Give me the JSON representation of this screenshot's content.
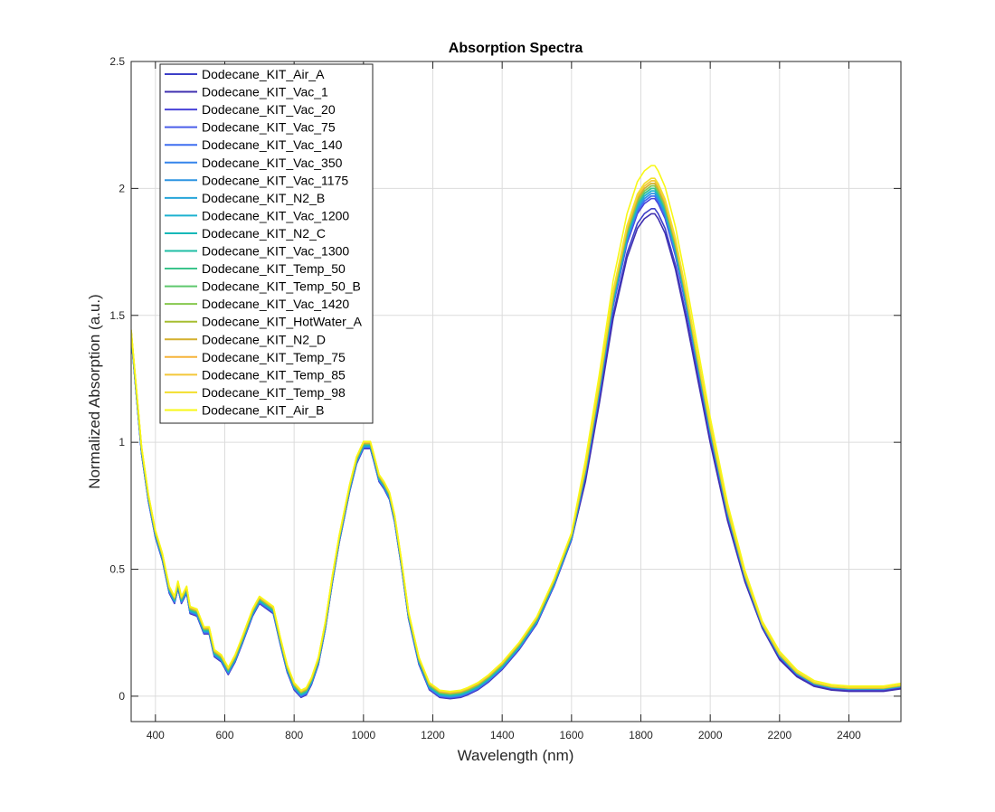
{
  "chart_data": {
    "type": "line",
    "title": "Absorption Spectra",
    "xlabel": "Wavelength (nm)",
    "ylabel": "Normalized Absorption (a.u.)",
    "xlim": [
      330,
      2550
    ],
    "ylim": [
      -0.1,
      2.5
    ],
    "xticks": [
      400,
      600,
      800,
      1000,
      1200,
      1400,
      1600,
      1800,
      2000,
      2200,
      2400
    ],
    "yticks": [
      0,
      0.5,
      1,
      1.5,
      2,
      2.5
    ],
    "xtick_labels": [
      "400",
      "600",
      "800",
      "1000",
      "1200",
      "1400",
      "1600",
      "1800",
      "2000",
      "2200",
      "2400"
    ],
    "ytick_labels": [
      "0",
      "0.5",
      "1",
      "1.5",
      "2",
      "2.5"
    ],
    "grid": true,
    "legend_position": "top-left",
    "base_curve": {
      "x": [
        330,
        345,
        360,
        380,
        400,
        420,
        440,
        455,
        465,
        475,
        490,
        500,
        520,
        540,
        555,
        570,
        590,
        610,
        630,
        650,
        680,
        700,
        720,
        740,
        760,
        780,
        800,
        820,
        835,
        850,
        870,
        890,
        910,
        930,
        960,
        980,
        1000,
        1020,
        1030,
        1045,
        1060,
        1075,
        1090,
        1110,
        1130,
        1160,
        1190,
        1220,
        1250,
        1280,
        1300,
        1330,
        1360,
        1400,
        1450,
        1500,
        1550,
        1600,
        1640,
        1680,
        1720,
        1760,
        1790,
        1810,
        1830,
        1840,
        1850,
        1870,
        1900,
        1930,
        1960,
        2000,
        2050,
        2100,
        2150,
        2200,
        2250,
        2300,
        2350,
        2400,
        2450,
        2500,
        2550
      ],
      "y": [
        1.43,
        1.2,
        0.97,
        0.78,
        0.64,
        0.55,
        0.42,
        0.38,
        0.44,
        0.38,
        0.42,
        0.34,
        0.33,
        0.26,
        0.26,
        0.17,
        0.15,
        0.1,
        0.15,
        0.22,
        0.33,
        0.38,
        0.36,
        0.34,
        0.22,
        0.11,
        0.04,
        0.01,
        0.02,
        0.06,
        0.14,
        0.28,
        0.46,
        0.62,
        0.82,
        0.93,
        0.99,
        0.99,
        0.94,
        0.86,
        0.83,
        0.79,
        0.7,
        0.52,
        0.32,
        0.14,
        0.04,
        0.01,
        0.005,
        0.01,
        0.02,
        0.04,
        0.07,
        0.12,
        0.2,
        0.3,
        0.45,
        0.63,
        0.88,
        1.2,
        1.55,
        1.8,
        1.92,
        1.96,
        1.98,
        1.98,
        1.96,
        1.9,
        1.75,
        1.55,
        1.33,
        1.04,
        0.72,
        0.47,
        0.28,
        0.15,
        0.08,
        0.04,
        0.025,
        0.02,
        0.02,
        0.02,
        0.03
      ]
    },
    "series": [
      {
        "name": "Dodecane_KIT_Air_A",
        "color": "#3D3FC8",
        "peak": 1.92
      },
      {
        "name": "Dodecane_KIT_Vac_1",
        "color": "#4030B0",
        "peak": 1.9
      },
      {
        "name": "Dodecane_KIT_Vac_20",
        "color": "#4A43D8",
        "peak": 1.96
      },
      {
        "name": "Dodecane_KIT_Vac_75",
        "color": "#4A5EEA",
        "peak": 1.97
      },
      {
        "name": "Dodecane_KIT_Vac_140",
        "color": "#3F6FF0",
        "peak": 1.97
      },
      {
        "name": "Dodecane_KIT_Vac_350",
        "color": "#3585EC",
        "peak": 1.98
      },
      {
        "name": "Dodecane_KIT_Vac_1175",
        "color": "#2E95E2",
        "peak": 1.98
      },
      {
        "name": "Dodecane_KIT_N2_B",
        "color": "#26A5DA",
        "peak": 1.99
      },
      {
        "name": "Dodecane_KIT_Vac_1200",
        "color": "#1DB2D0",
        "peak": 1.99
      },
      {
        "name": "Dodecane_KIT_N2_C",
        "color": "#16B8B8",
        "peak": 2.0
      },
      {
        "name": "Dodecane_KIT_Vac_1300",
        "color": "#1FBEA4",
        "peak": 2.0
      },
      {
        "name": "Dodecane_KIT_Temp_50",
        "color": "#3CC48C",
        "peak": 2.0
      },
      {
        "name": "Dodecane_KIT_Temp_50_B",
        "color": "#5EC86C",
        "peak": 2.01
      },
      {
        "name": "Dodecane_KIT_Vac_1420",
        "color": "#86C84E",
        "peak": 2.01
      },
      {
        "name": "Dodecane_KIT_HotWater_A",
        "color": "#A6BE30",
        "peak": 2.02
      },
      {
        "name": "Dodecane_KIT_N2_D",
        "color": "#D4B02E",
        "peak": 2.02
      },
      {
        "name": "Dodecane_KIT_Temp_75",
        "color": "#F6B43A",
        "peak": 2.03
      },
      {
        "name": "Dodecane_KIT_Temp_85",
        "color": "#F4C83A",
        "peak": 2.03
      },
      {
        "name": "Dodecane_KIT_Temp_98",
        "color": "#F2DE2C",
        "peak": 2.04
      },
      {
        "name": "Dodecane_KIT_Air_B",
        "color": "#F8F816",
        "peak": 2.09
      }
    ]
  }
}
